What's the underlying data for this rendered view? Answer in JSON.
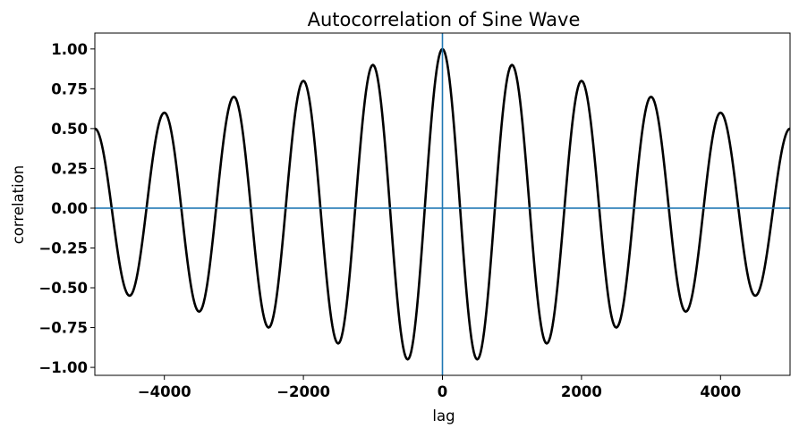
{
  "chart_data": {
    "type": "line",
    "title": "Autocorrelation of Sine Wave",
    "xlabel": "lag",
    "ylabel": "correlation",
    "xlim": [
      -5000,
      5000
    ],
    "ylim": [
      -1.05,
      1.1
    ],
    "x_ticks": [
      -4000,
      -2000,
      0,
      2000,
      4000
    ],
    "x_tick_labels": [
      "−4000",
      "−2000",
      "0",
      "2000",
      "4000"
    ],
    "y_ticks": [
      1.0,
      0.75,
      0.5,
      0.25,
      0.0,
      -0.25,
      -0.5,
      -0.75,
      -1.0
    ],
    "y_tick_labels": [
      "1.00",
      "0.75",
      "0.50",
      "0.25",
      "0.00",
      "−0.25",
      "−0.50",
      "−0.75",
      "−1.00"
    ],
    "grid": false,
    "series": [
      {
        "color": "#000000",
        "x": [
          -5000,
          -4500,
          -4000,
          -3500,
          -3000,
          -2500,
          -2000,
          -1500,
          -1000,
          -500,
          0,
          500,
          1000,
          1500,
          2000,
          2500,
          3000,
          3500,
          4000,
          4500,
          5000
        ],
        "y": [
          0.5,
          -0.55,
          0.6,
          -0.65,
          0.7,
          -0.75,
          0.8,
          -0.85,
          0.9,
          -0.95,
          1.0,
          -0.95,
          0.9,
          -0.85,
          0.8,
          -0.75,
          0.7,
          -0.65,
          0.6,
          -0.55,
          0.5
        ]
      }
    ],
    "reference_lines": {
      "color": "#1f77b4",
      "vertical_x": 0,
      "horizontal_y": 0
    }
  }
}
